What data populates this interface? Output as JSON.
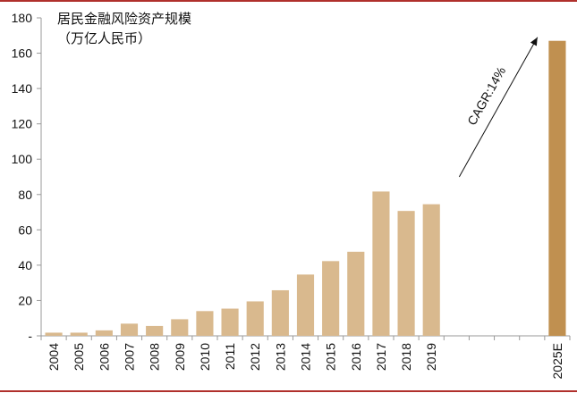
{
  "chart_data": {
    "type": "bar",
    "title": "居民金融风险资产规模",
    "subtitle": "（万亿人民币）",
    "categories": [
      "2004",
      "2005",
      "2006",
      "2007",
      "2008",
      "2009",
      "2010",
      "2011",
      "2012",
      "2013",
      "2014",
      "2015",
      "2016",
      "2017",
      "2018",
      "2019",
      "",
      "",
      "",
      "",
      "2025E"
    ],
    "values": [
      1.8,
      1.8,
      3.1,
      6.9,
      5.6,
      9.4,
      14.0,
      15.4,
      19.5,
      25.8,
      34.7,
      42.3,
      47.6,
      81.7,
      70.7,
      74.5,
      null,
      null,
      null,
      null,
      167.0
    ],
    "bar_colors": {
      "default": "#d9b98e",
      "projection": "#c09050"
    },
    "ylim": [
      0,
      180
    ],
    "yticks": [
      0,
      20,
      40,
      60,
      80,
      100,
      120,
      140,
      160,
      180
    ],
    "ytick_labels": [
      "-",
      "20",
      "40",
      "60",
      "80",
      "100",
      "120",
      "140",
      "160",
      "180"
    ],
    "annotation": {
      "text": "CAGR:14%",
      "from_category_index": 16,
      "from_value": 90,
      "to_category_index": 19,
      "to_value": 167
    },
    "grid": false,
    "legend": "none",
    "rule_color": "#b0302c"
  }
}
